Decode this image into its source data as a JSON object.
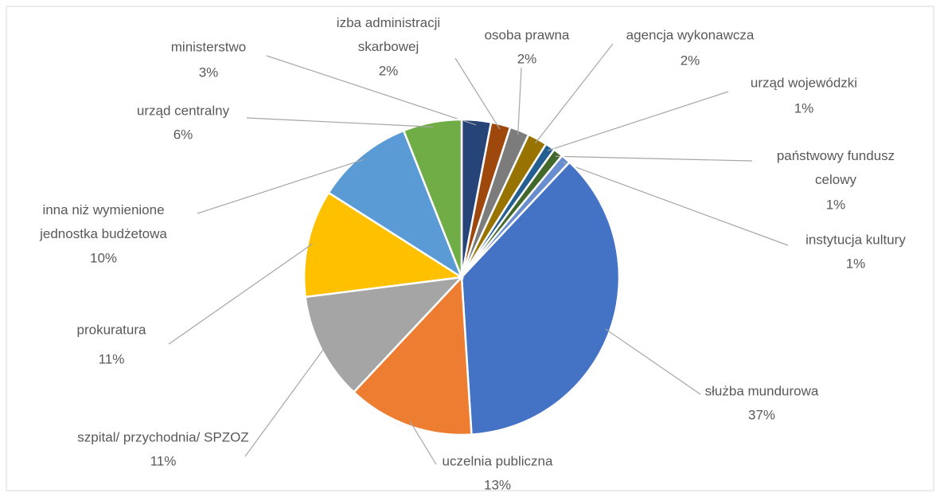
{
  "chart_data": {
    "type": "pie",
    "categories": [
      "ministerstwo",
      "izba administracji skarbowej",
      "osoba prawna",
      "agencja wykonawcza",
      "urząd wojewódzki",
      "państwowy fundusz celowy",
      "instytucja kultury",
      "służba mundurowa",
      "uczelnia publiczna",
      "szpital/ przychodnia/ SPZOZ",
      "prokuratura",
      "inna niż wymienione jednostka budżetowa",
      "urząd centralny"
    ],
    "values": [
      3,
      2,
      2,
      2,
      1,
      1,
      1,
      37,
      13,
      11,
      11,
      10,
      6
    ],
    "value_labels": [
      "3%",
      "2%",
      "2%",
      "2%",
      "1%",
      "1%",
      "1%",
      "37%",
      "13%",
      "11%",
      "11%",
      "10%",
      "6%"
    ],
    "colors": [
      "#264478",
      "#9e480e",
      "#7c7c7c",
      "#997300",
      "#255e91",
      "#43682b",
      "#698ed0",
      "#4472c4",
      "#ed7d31",
      "#a5a5a5",
      "#ffc000",
      "#5b9bd5",
      "#70ad47"
    ]
  }
}
